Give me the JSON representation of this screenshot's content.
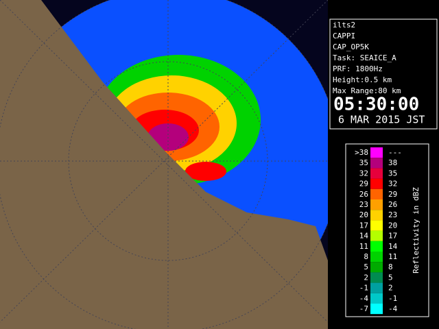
{
  "info": {
    "lines": [
      "ilts2",
      "CAPPI",
      "CAP_OP5K",
      "Task: SEAICE_A",
      "PRF: 1800Hz",
      "Height:0.5 km",
      "Max Range:80 km"
    ],
    "time": "05:30:00",
    "date": "6 MAR 2015 JST"
  },
  "legend": {
    "title": "Reflectivity in dBZ",
    "rows": [
      {
        "low": ">38",
        "high": "---",
        "color": "#ff00ff"
      },
      {
        "low": "35",
        "high": "38",
        "color": "#b4007c"
      },
      {
        "low": "32",
        "high": "35",
        "color": "#e6003c"
      },
      {
        "low": "29",
        "high": "32",
        "color": "#ff0000"
      },
      {
        "low": "26",
        "high": "29",
        "color": "#ff6400"
      },
      {
        "low": "23",
        "high": "26",
        "color": "#ffa000"
      },
      {
        "low": "20",
        "high": "23",
        "color": "#ffd200"
      },
      {
        "low": "17",
        "high": "20",
        "color": "#ffff00"
      },
      {
        "low": "14",
        "high": "17",
        "color": "#b4ff00"
      },
      {
        "low": "11",
        "high": "14",
        "color": "#00ff00"
      },
      {
        "low": "8",
        "high": "11",
        "color": "#00d200"
      },
      {
        "low": "5",
        "high": "8",
        "color": "#00aa00"
      },
      {
        "low": "2",
        "high": "5",
        "color": "#008c50"
      },
      {
        "low": "-1",
        "high": "2",
        "color": "#00a0a0"
      },
      {
        "low": "-4",
        "high": "-1",
        "color": "#00c8c8"
      },
      {
        "low": "-7",
        "high": "-4",
        "color": "#00ffff"
      }
    ]
  }
}
